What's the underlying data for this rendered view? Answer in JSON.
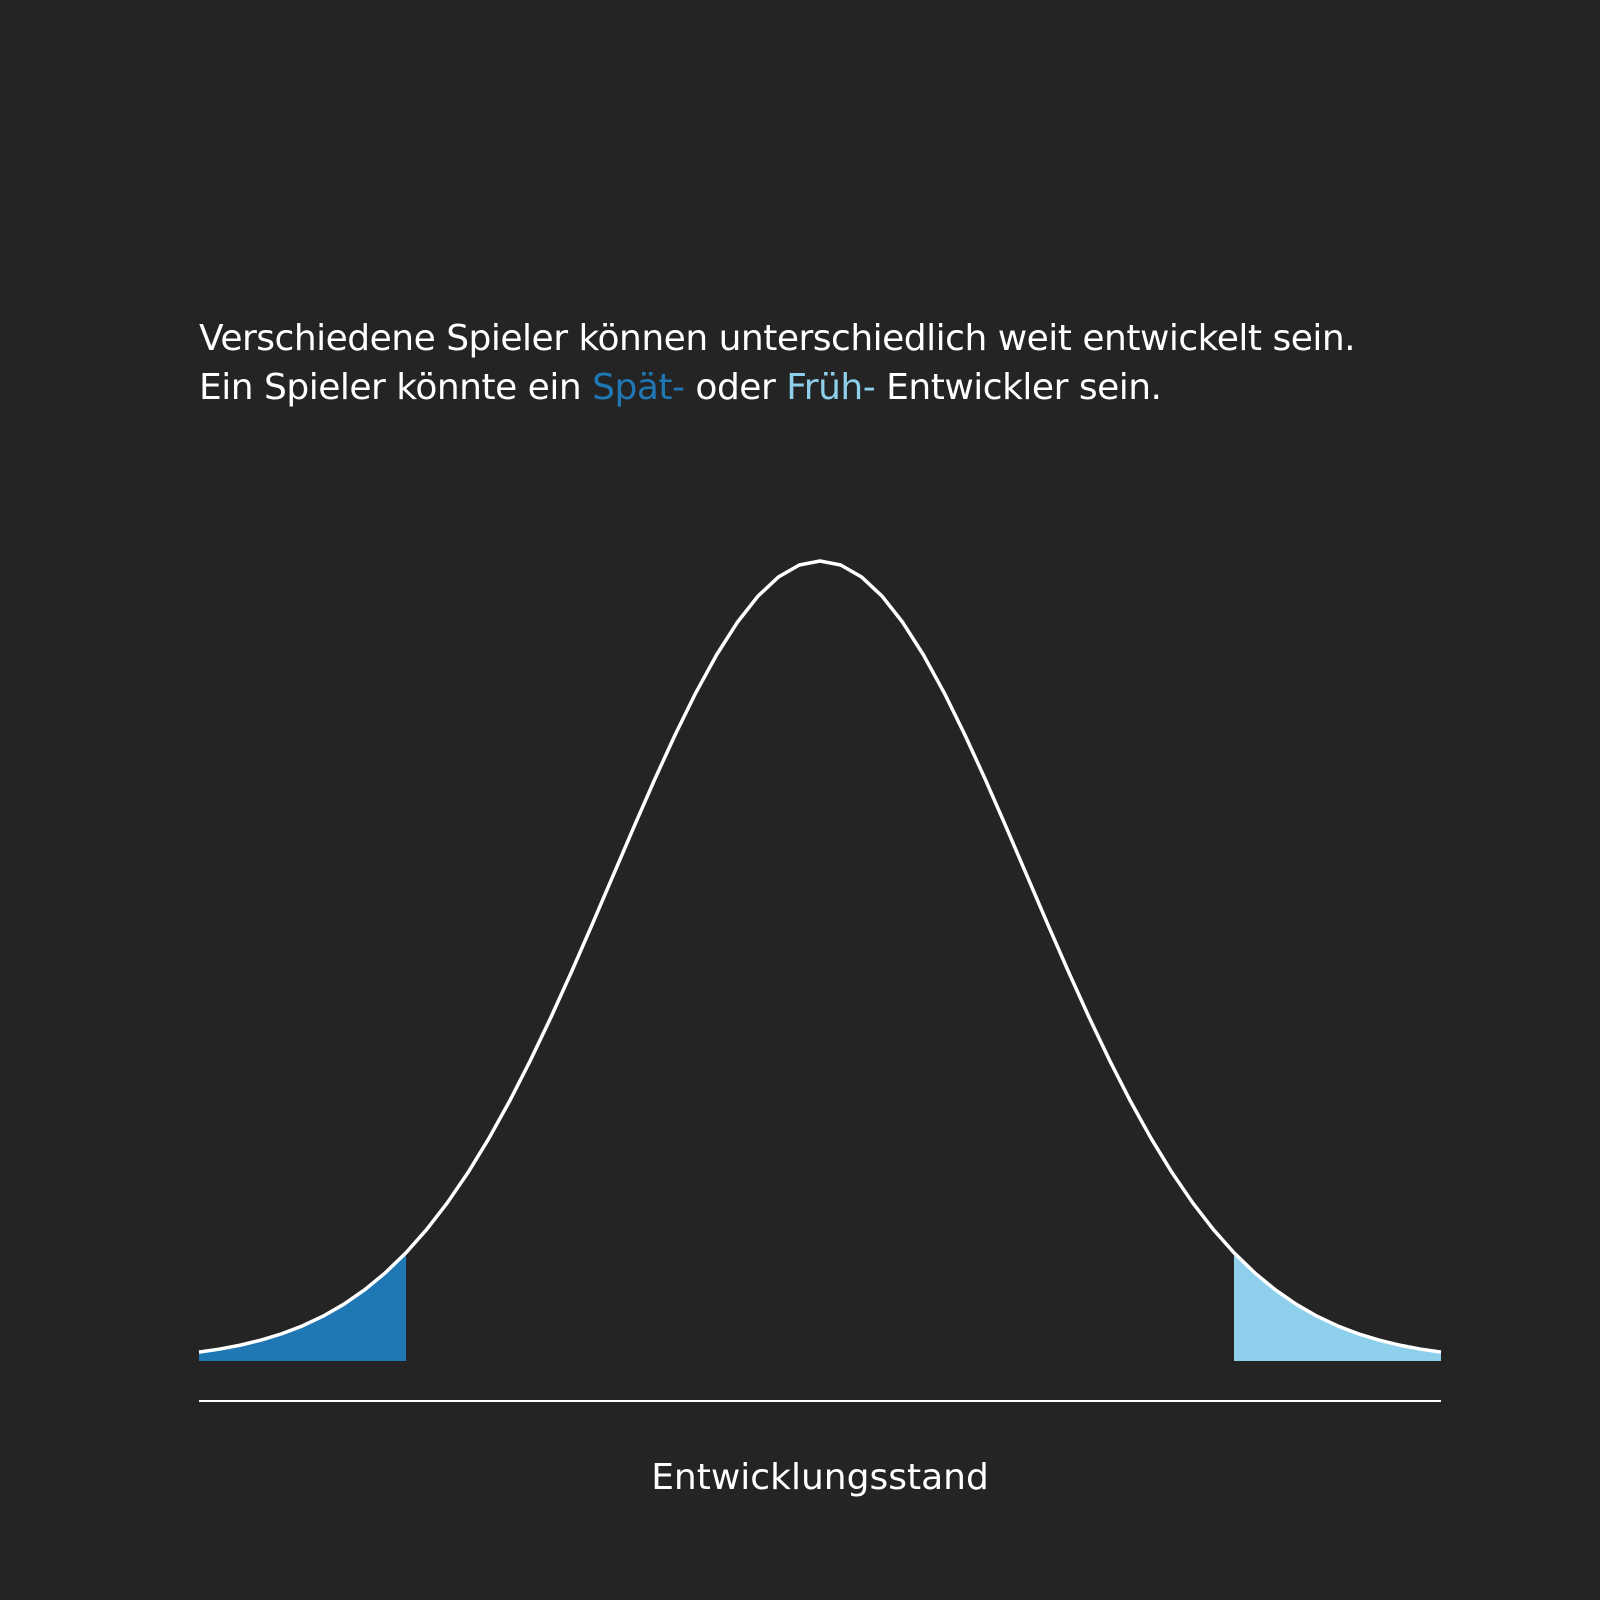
{
  "headline": {
    "line1": "Verschiedene Spieler können unterschiedlich weit entwickelt sein.",
    "line2_prefix": "Ein Spieler könnte ein ",
    "line2_late": "Spät-",
    "line2_middle": " oder ",
    "line2_early": "Früh-",
    "line2_suffix": " Entwickler sein."
  },
  "chart_data": {
    "type": "area",
    "distribution": "normal",
    "mean": 0,
    "sd": 1,
    "xlim": [
      -3,
      3
    ],
    "late_region": [
      -3,
      -2
    ],
    "early_region": [
      2,
      3
    ],
    "xlabel": "Entwicklungsstand",
    "ylabel": "",
    "title": "",
    "grid": false,
    "colors": {
      "background": "#242424",
      "curve": "#ffffff",
      "late": "#1f77b4",
      "early": "#8ecfec",
      "axis": "#ffffff"
    }
  }
}
